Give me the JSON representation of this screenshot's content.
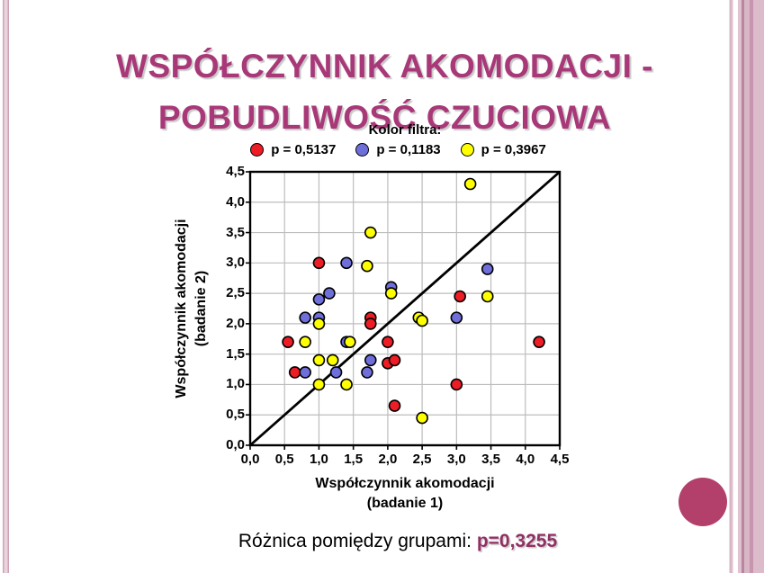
{
  "slide": {
    "title": "WSPÓŁCZYNNIK AKOMODACJI - POBUDLIWOŚĆ CZUCIOWA",
    "footer": {
      "label": "Różnica pomiędzy grupami:",
      "value": "p=0,3255"
    },
    "colors": {
      "title": "#a83878",
      "footer_value": "#913064",
      "accent_circle": "#b2406b",
      "grid": "#bdbdbd",
      "axis": "#000000"
    }
  },
  "chart_data": {
    "type": "scatter",
    "legend_title": "Kolor filtra:",
    "xlabel_line1": "Współczynnik akomodacji",
    "xlabel_line2": "(badanie 1)",
    "ylabel_line1": "Współczynnik akomodacji",
    "ylabel_line2": "(badanie 2)",
    "xlim": [
      0,
      4.5
    ],
    "ylim": [
      0,
      4.5
    ],
    "tick_step": 0.5,
    "x_tick_labels": [
      "0,0",
      "0,5",
      "1,0",
      "1,5",
      "2,0",
      "2,5",
      "3,0",
      "3,5",
      "4,0",
      "4,5"
    ],
    "y_tick_labels": [
      "0,0",
      "0,5",
      "1,0",
      "1,5",
      "2,0",
      "2,5",
      "3,0",
      "3,5",
      "4,0",
      "4,5"
    ],
    "grid": true,
    "identity_line": true,
    "legend_position": "top",
    "series": [
      {
        "name": "red",
        "label": "p = 0,5137",
        "color": "#ee1c25",
        "points": [
          [
            1.0,
            3.0
          ],
          [
            0.55,
            1.7
          ],
          [
            1.75,
            2.1
          ],
          [
            1.75,
            2.0
          ],
          [
            2.0,
            1.7
          ],
          [
            3.05,
            2.45
          ],
          [
            2.0,
            1.35
          ],
          [
            2.1,
            1.4
          ],
          [
            0.65,
            1.2
          ],
          [
            3.0,
            1.0
          ],
          [
            2.1,
            0.65
          ],
          [
            4.2,
            1.7
          ]
        ]
      },
      {
        "name": "blue",
        "label": "p = 0,1183",
        "color": "#6f6fdc",
        "points": [
          [
            1.4,
            3.0
          ],
          [
            3.45,
            2.9
          ],
          [
            2.05,
            2.6
          ],
          [
            1.15,
            2.5
          ],
          [
            1.0,
            2.4
          ],
          [
            0.8,
            2.1
          ],
          [
            1.0,
            2.1
          ],
          [
            3.0,
            2.1
          ],
          [
            1.4,
            1.7
          ],
          [
            1.75,
            1.4
          ],
          [
            0.8,
            1.2
          ],
          [
            1.25,
            1.2
          ],
          [
            1.7,
            1.2
          ]
        ]
      },
      {
        "name": "yellow",
        "label": "p = 0,3967",
        "color": "#ffff00",
        "points": [
          [
            3.2,
            4.3
          ],
          [
            1.75,
            3.5
          ],
          [
            1.7,
            2.95
          ],
          [
            2.05,
            2.5
          ],
          [
            1.0,
            2.0
          ],
          [
            2.45,
            2.1
          ],
          [
            2.5,
            2.05
          ],
          [
            3.45,
            2.45
          ],
          [
            0.8,
            1.7
          ],
          [
            1.45,
            1.7
          ],
          [
            1.0,
            1.4
          ],
          [
            1.2,
            1.4
          ],
          [
            1.0,
            1.0
          ],
          [
            1.4,
            1.0
          ],
          [
            2.5,
            0.45
          ]
        ]
      }
    ]
  }
}
